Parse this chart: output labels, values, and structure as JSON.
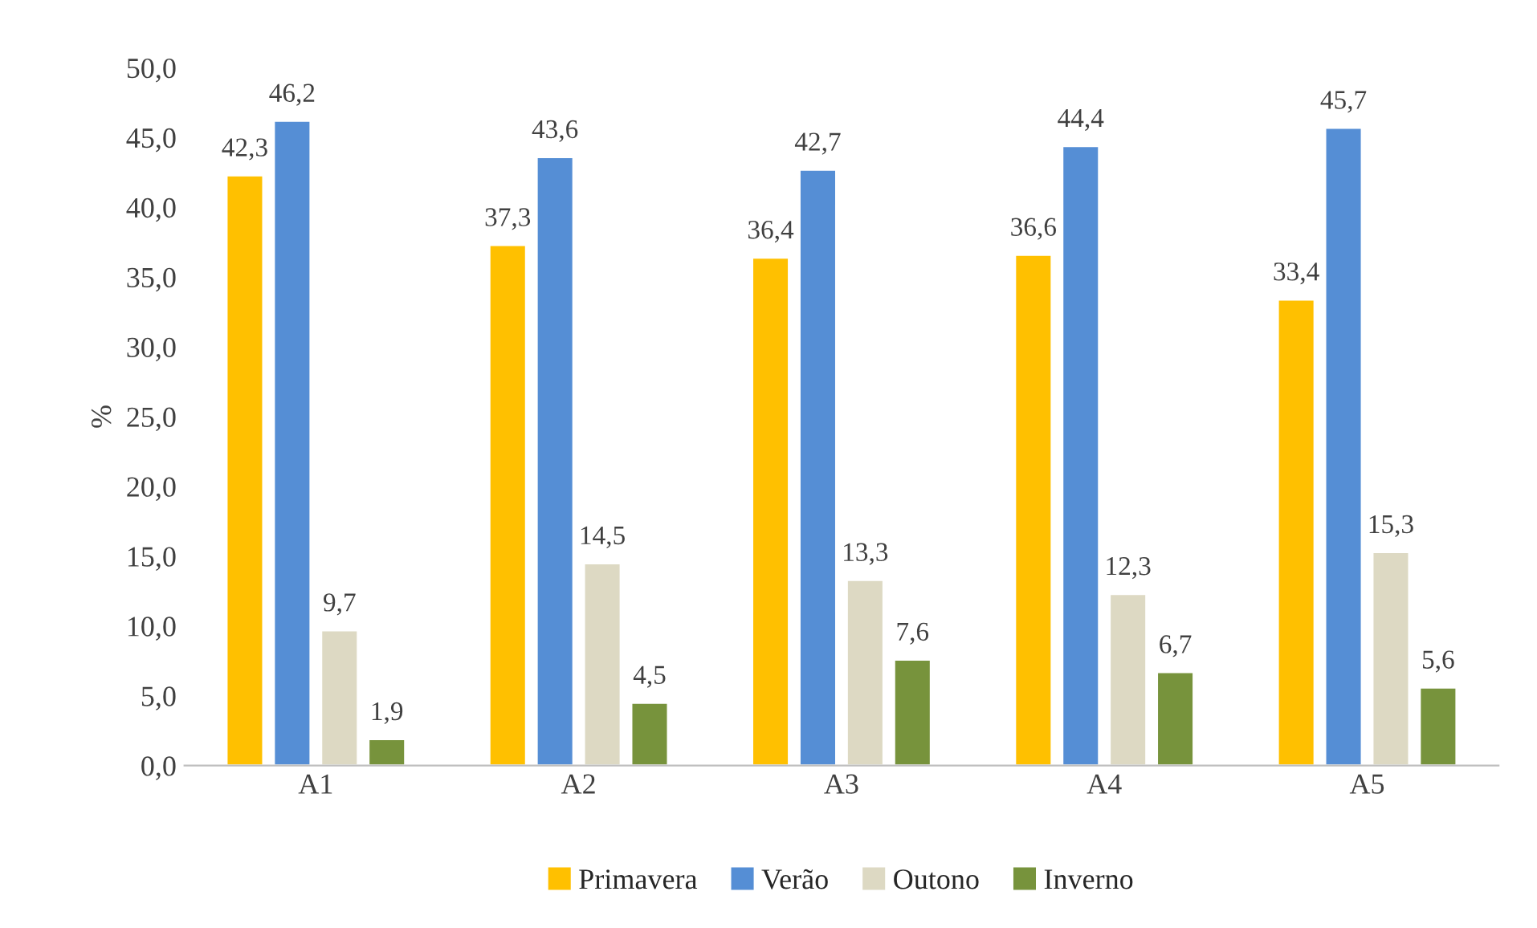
{
  "chart_data": {
    "type": "bar",
    "ylabel": "%",
    "categories": [
      "A1",
      "A2",
      "A3",
      "A4",
      "A5"
    ],
    "series": [
      {
        "name": "Primavera",
        "color": "#ffc000",
        "values": [
          42.3,
          37.3,
          36.4,
          36.6,
          33.4
        ],
        "value_labels": [
          "42,3",
          "37,3",
          "36,4",
          "36,6",
          "33,4"
        ]
      },
      {
        "name": "Verão",
        "color": "#558ed5",
        "values": [
          46.2,
          43.6,
          42.7,
          44.4,
          45.7
        ],
        "value_labels": [
          "46,2",
          "43,6",
          "42,7",
          "44,4",
          "45,7"
        ]
      },
      {
        "name": "Outono",
        "color": "#ddd9c3",
        "values": [
          9.7,
          14.5,
          13.3,
          12.3,
          15.3
        ],
        "value_labels": [
          "9,7",
          "14,5",
          "13,3",
          "12,3",
          "15,3"
        ]
      },
      {
        "name": "Inverno",
        "color": "#77933c",
        "values": [
          1.9,
          4.5,
          7.6,
          6.7,
          5.6
        ],
        "value_labels": [
          "1,9",
          "4,5",
          "7,6",
          "6,7",
          "5,6"
        ]
      }
    ],
    "ylim": [
      0,
      50
    ],
    "yticks": [
      {
        "value": 0,
        "label": "0,0"
      },
      {
        "value": 5,
        "label": "5,0"
      },
      {
        "value": 10,
        "label": "10,0"
      },
      {
        "value": 15,
        "label": "15,0"
      },
      {
        "value": 20,
        "label": "20,0"
      },
      {
        "value": 25,
        "label": "25,0"
      },
      {
        "value": 30,
        "label": "30,0"
      },
      {
        "value": 35,
        "label": "35,0"
      },
      {
        "value": 40,
        "label": "40,0"
      },
      {
        "value": 45,
        "label": "45,0"
      },
      {
        "value": 50,
        "label": "50,0"
      }
    ],
    "grid": false,
    "legend": "bottom"
  }
}
